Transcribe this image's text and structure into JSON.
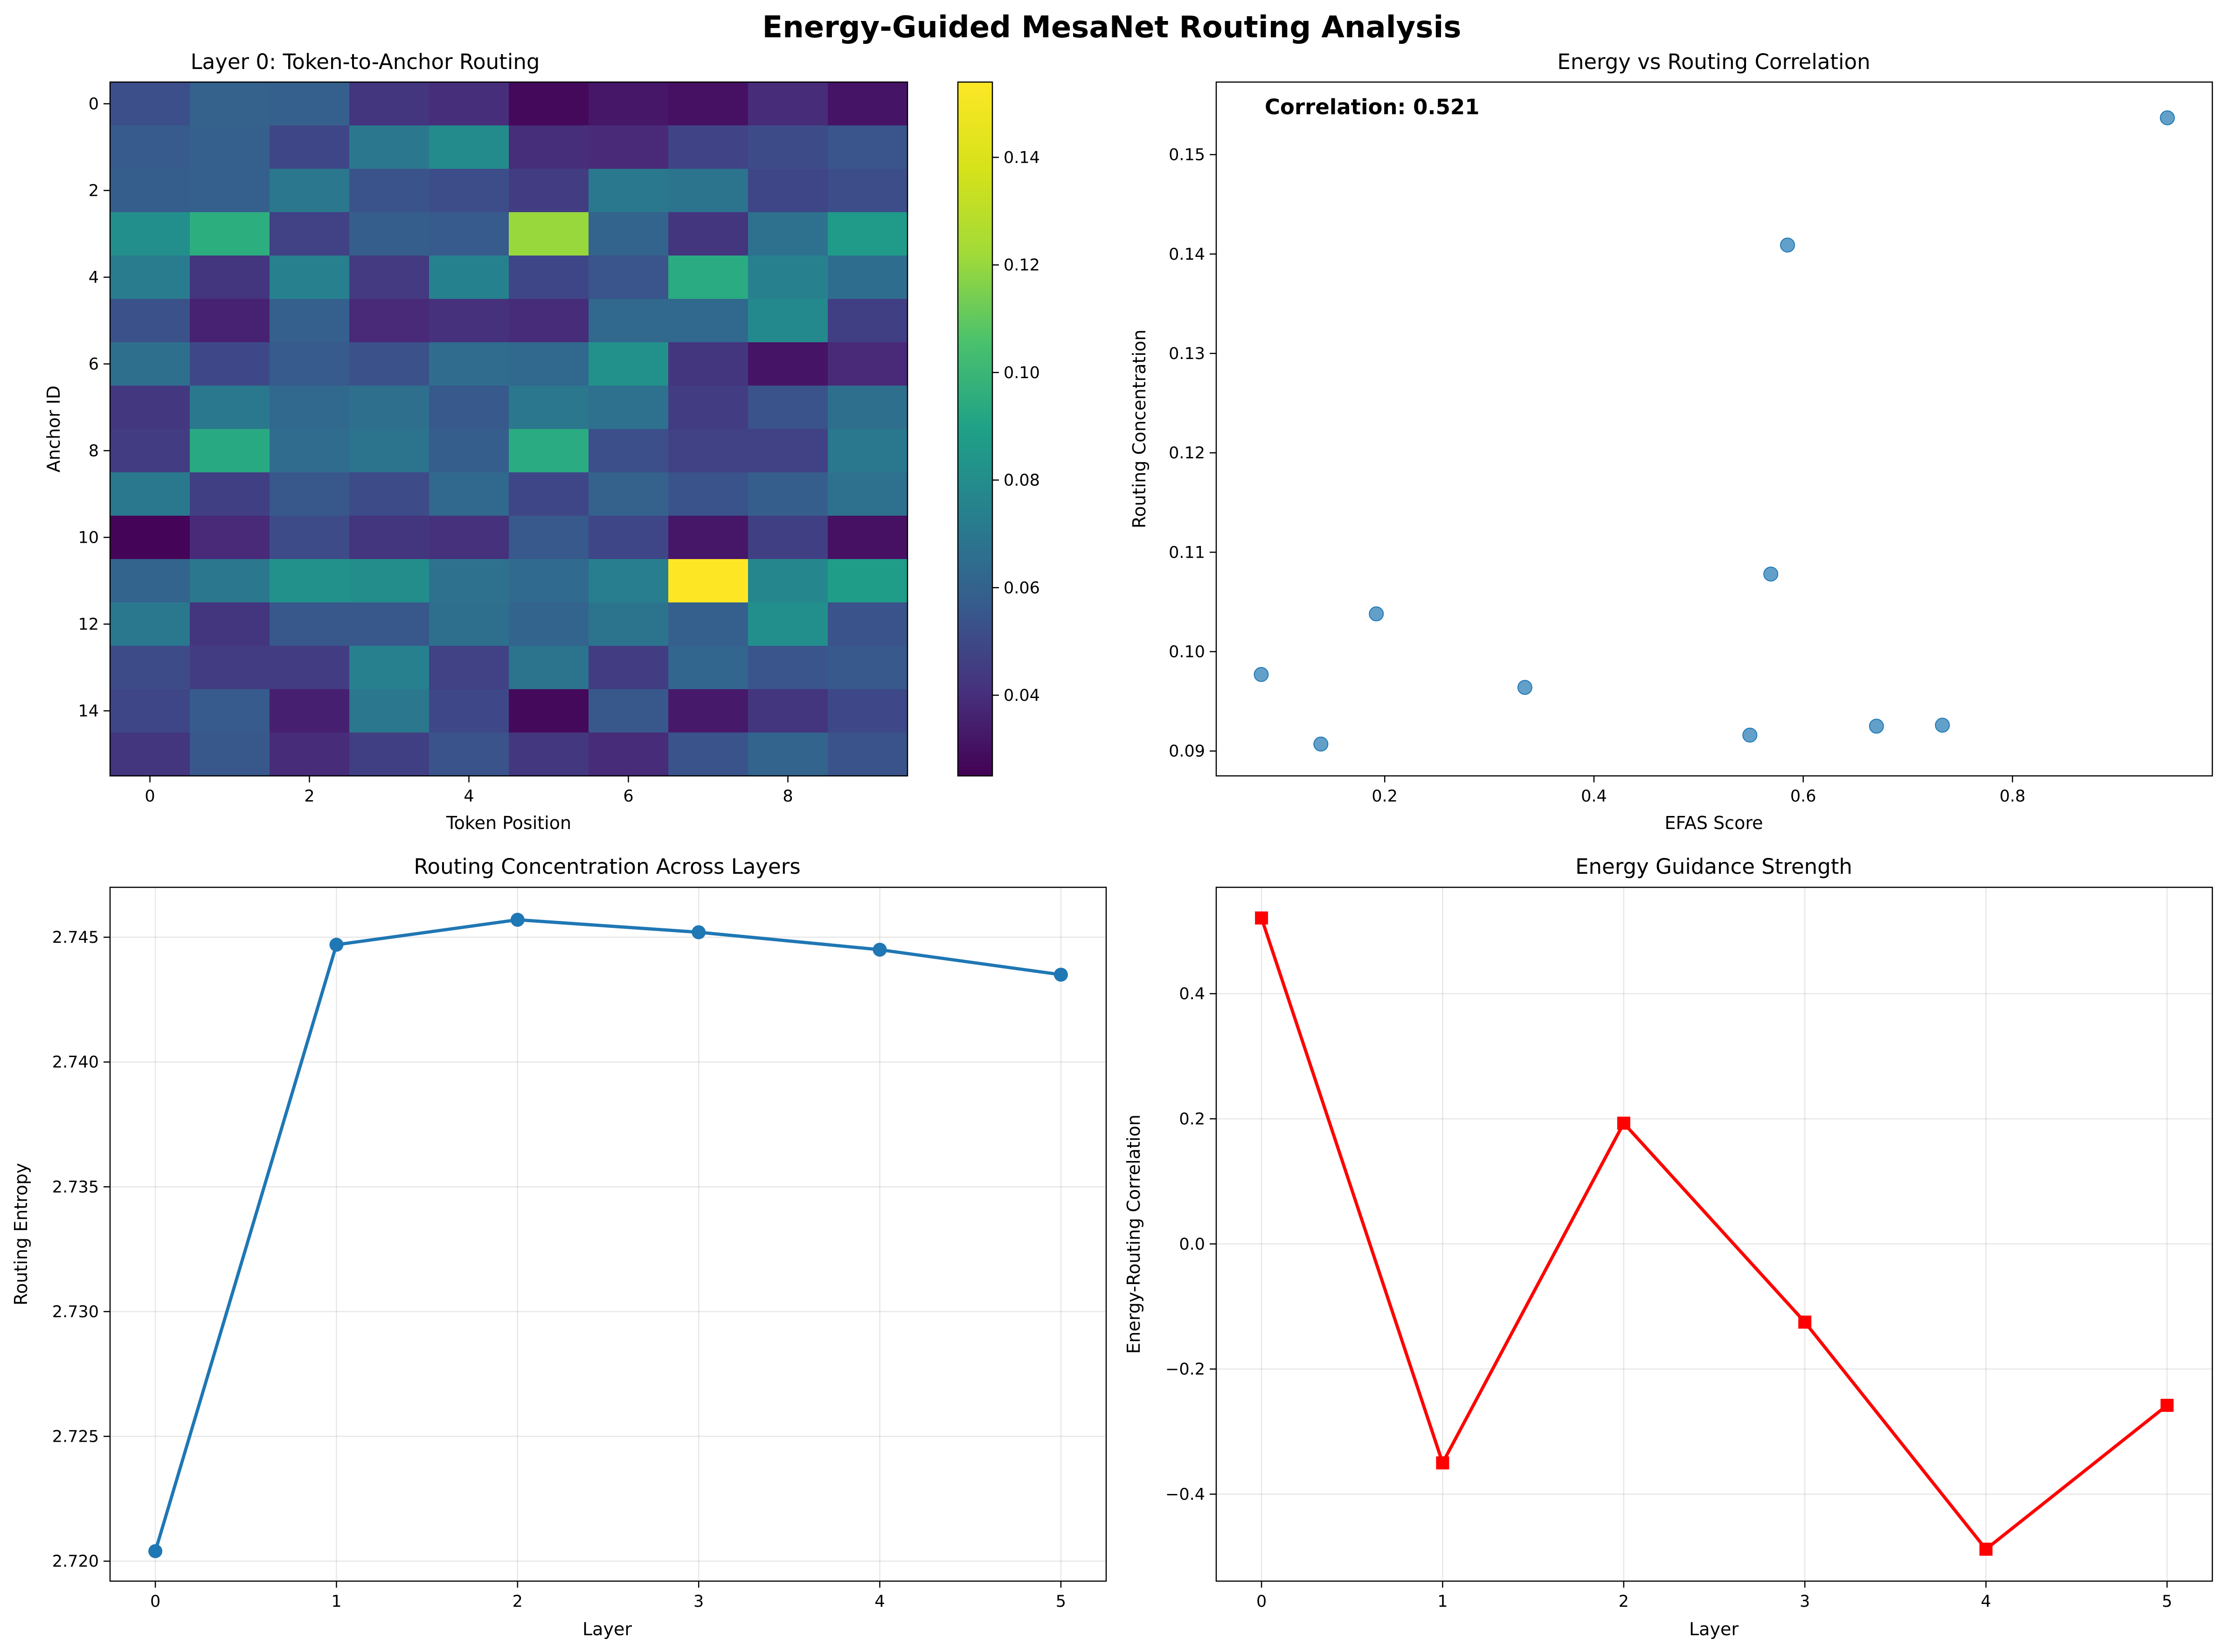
{
  "figure": {
    "title": "Energy-Guided MesaNet Routing Analysis"
  },
  "chart_data": [
    {
      "type": "heatmap",
      "title": "Layer 0: Token-to-Anchor Routing",
      "xlabel": "Token Position",
      "ylabel": "Anchor ID",
      "x_ticks": [
        0,
        2,
        4,
        6,
        8
      ],
      "y_ticks": [
        0,
        2,
        4,
        6,
        8,
        10,
        12,
        14
      ],
      "colormap": "viridis",
      "colorbar": {
        "vmin": 0.025,
        "vmax": 0.154,
        "ticks": [
          0.04,
          0.06,
          0.08,
          0.1,
          0.12,
          0.14
        ],
        "tick_labels": [
          "0.04",
          "0.06",
          "0.08",
          "0.10",
          "0.12",
          "0.14"
        ]
      },
      "values": [
        [
          0.056,
          0.065,
          0.064,
          0.045,
          0.042,
          0.028,
          0.033,
          0.031,
          0.041,
          0.032
        ],
        [
          0.062,
          0.064,
          0.052,
          0.076,
          0.087,
          0.042,
          0.04,
          0.051,
          0.054,
          0.059
        ],
        [
          0.063,
          0.064,
          0.076,
          0.058,
          0.055,
          0.048,
          0.077,
          0.074,
          0.052,
          0.055
        ],
        [
          0.089,
          0.106,
          0.05,
          0.063,
          0.062,
          0.134,
          0.066,
          0.045,
          0.073,
          0.095
        ],
        [
          0.079,
          0.045,
          0.081,
          0.047,
          0.082,
          0.052,
          0.059,
          0.104,
          0.081,
          0.071
        ],
        [
          0.057,
          0.037,
          0.064,
          0.04,
          0.043,
          0.041,
          0.068,
          0.068,
          0.086,
          0.049
        ],
        [
          0.072,
          0.053,
          0.062,
          0.057,
          0.07,
          0.068,
          0.09,
          0.045,
          0.032,
          0.04
        ],
        [
          0.046,
          0.077,
          0.068,
          0.072,
          0.061,
          0.076,
          0.073,
          0.048,
          0.058,
          0.072
        ],
        [
          0.048,
          0.103,
          0.07,
          0.074,
          0.063,
          0.104,
          0.056,
          0.05,
          0.05,
          0.077
        ],
        [
          0.077,
          0.049,
          0.06,
          0.054,
          0.068,
          0.052,
          0.065,
          0.058,
          0.063,
          0.073
        ],
        [
          0.026,
          0.04,
          0.054,
          0.045,
          0.043,
          0.061,
          0.052,
          0.033,
          0.049,
          0.031
        ],
        [
          0.066,
          0.076,
          0.09,
          0.088,
          0.073,
          0.069,
          0.08,
          0.154,
          0.085,
          0.096
        ],
        [
          0.077,
          0.045,
          0.06,
          0.06,
          0.072,
          0.066,
          0.074,
          0.064,
          0.089,
          0.058
        ],
        [
          0.054,
          0.048,
          0.048,
          0.081,
          0.05,
          0.074,
          0.048,
          0.067,
          0.059,
          0.061
        ],
        [
          0.052,
          0.062,
          0.036,
          0.076,
          0.053,
          0.028,
          0.06,
          0.034,
          0.045,
          0.053
        ],
        [
          0.045,
          0.06,
          0.041,
          0.049,
          0.058,
          0.046,
          0.041,
          0.058,
          0.066,
          0.058
        ]
      ]
    },
    {
      "type": "scatter",
      "title": "Energy vs Routing Correlation",
      "xlabel": "EFAS Score",
      "ylabel": "Routing Concentration",
      "annotation": "Correlation: 0.521",
      "xlim": [
        0.039,
        0.991
      ],
      "ylim": [
        0.0875,
        0.1573
      ],
      "x_ticks": [
        0.2,
        0.4,
        0.6,
        0.8
      ],
      "x_tick_labels": [
        "0.2",
        "0.4",
        "0.6",
        "0.8"
      ],
      "y_ticks": [
        0.09,
        0.1,
        0.11,
        0.12,
        0.13,
        0.14,
        0.15
      ],
      "y_tick_labels": [
        "0.09",
        "0.10",
        "0.11",
        "0.12",
        "0.13",
        "0.14",
        "0.15"
      ],
      "color": "#1f77b4",
      "x": [
        0.082,
        0.139,
        0.192,
        0.334,
        0.549,
        0.569,
        0.585,
        0.67,
        0.733,
        0.948
      ],
      "y": [
        0.0977,
        0.0907,
        0.1038,
        0.0964,
        0.0916,
        0.1078,
        0.1409,
        0.0925,
        0.0926,
        0.1537
      ]
    },
    {
      "type": "line",
      "title": "Routing Concentration Across Layers",
      "xlabel": "Layer",
      "ylabel": "Routing Entropy",
      "xlim": [
        -0.25,
        5.25
      ],
      "ylim": [
        2.7192,
        2.747
      ],
      "x_ticks": [
        0,
        1,
        2,
        3,
        4,
        5
      ],
      "x_tick_labels": [
        "0",
        "1",
        "2",
        "3",
        "4",
        "5"
      ],
      "y_ticks": [
        2.72,
        2.725,
        2.73,
        2.735,
        2.74,
        2.745
      ],
      "y_tick_labels": [
        "2.720",
        "2.725",
        "2.730",
        "2.735",
        "2.740",
        "2.745"
      ],
      "color": "#1f77b4",
      "marker": "circle",
      "grid": true,
      "x": [
        0,
        1,
        2,
        3,
        4,
        5
      ],
      "y": [
        2.7204,
        2.7447,
        2.7457,
        2.7452,
        2.7445,
        2.7435
      ]
    },
    {
      "type": "line",
      "title": "Energy Guidance Strength",
      "xlabel": "Layer",
      "ylabel": "Energy-Routing Correlation",
      "xlim": [
        -0.25,
        5.25
      ],
      "ylim": [
        -0.539,
        0.57
      ],
      "x_ticks": [
        0,
        1,
        2,
        3,
        4,
        5
      ],
      "x_tick_labels": [
        "0",
        "1",
        "2",
        "3",
        "4",
        "5"
      ],
      "y_ticks": [
        -0.4,
        -0.2,
        0.0,
        0.2,
        0.4
      ],
      "y_tick_labels": [
        "−0.4",
        "−0.2",
        "0.0",
        "0.2",
        "0.4"
      ],
      "color": "#ff0000",
      "marker": "square",
      "grid": true,
      "x": [
        0,
        1,
        2,
        3,
        4,
        5
      ],
      "y": [
        0.521,
        -0.35,
        0.193,
        -0.125,
        -0.488,
        -0.258
      ]
    }
  ]
}
